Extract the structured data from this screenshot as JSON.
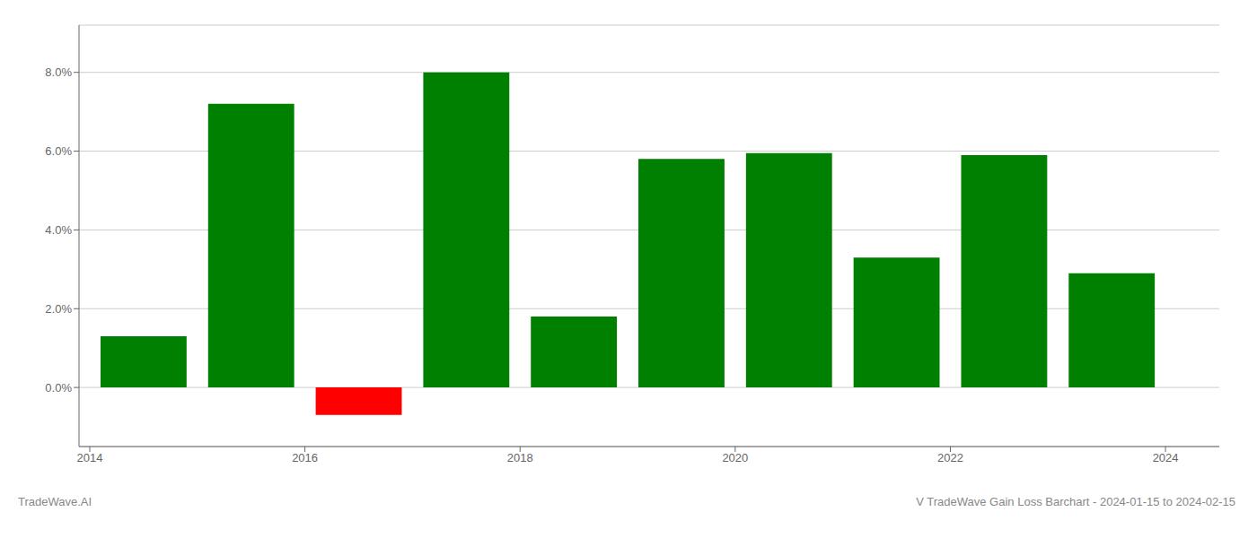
{
  "chart_data": {
    "type": "bar",
    "x": [
      2014.5,
      2015.5,
      2016.5,
      2017.5,
      2018.5,
      2019.5,
      2020.5,
      2021.5,
      2022.5,
      2023.5
    ],
    "values": [
      0.013,
      0.072,
      -0.007,
      0.08,
      0.018,
      0.058,
      0.0595,
      0.033,
      0.059,
      0.029
    ],
    "colors": [
      "#008000",
      "#008000",
      "#ff0000",
      "#008000",
      "#008000",
      "#008000",
      "#008000",
      "#008000",
      "#008000",
      "#008000"
    ],
    "xlim": [
      2013.9,
      2024.5
    ],
    "xticks": [
      2014,
      2016,
      2018,
      2020,
      2022,
      2024
    ],
    "ylim": [
      -0.015,
      0.092
    ],
    "yticks": [
      {
        "value": 0.0,
        "label": "0.0%"
      },
      {
        "value": 0.02,
        "label": "2.0%"
      },
      {
        "value": 0.04,
        "label": "4.0%"
      },
      {
        "value": 0.06,
        "label": "6.0%"
      },
      {
        "value": 0.08,
        "label": "8.0%"
      }
    ],
    "grid": true,
    "annotations": [
      "TradeWave.AI",
      "V TradeWave Gain Loss Barchart - 2024-01-15 to 2024-02-15"
    ]
  }
}
